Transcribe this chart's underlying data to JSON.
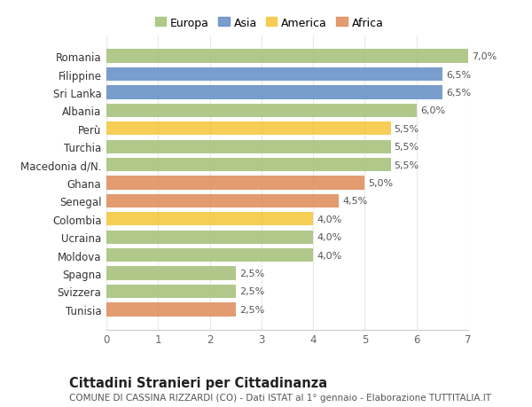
{
  "categories": [
    "Romania",
    "Filippine",
    "Sri Lanka",
    "Albania",
    "Perù",
    "Turchia",
    "Macedonia d/N.",
    "Ghana",
    "Senegal",
    "Colombia",
    "Ucraina",
    "Moldova",
    "Spagna",
    "Svizzera",
    "Tunisia"
  ],
  "values": [
    7.0,
    6.5,
    6.5,
    6.0,
    5.5,
    5.5,
    5.5,
    5.0,
    4.5,
    4.0,
    4.0,
    4.0,
    2.5,
    2.5,
    2.5
  ],
  "labels": [
    "7,0%",
    "6,5%",
    "6,5%",
    "6,0%",
    "5,5%",
    "5,5%",
    "5,5%",
    "5,0%",
    "4,5%",
    "4,0%",
    "4,0%",
    "4,0%",
    "2,5%",
    "2,5%",
    "2,5%"
  ],
  "continent": [
    "Europa",
    "Asia",
    "Asia",
    "Europa",
    "America",
    "Europa",
    "Europa",
    "Africa",
    "Africa",
    "America",
    "Europa",
    "Europa",
    "Europa",
    "Europa",
    "Africa"
  ],
  "colors": {
    "Europa": "#a8c47e",
    "Asia": "#6b93c7",
    "America": "#f5c842",
    "Africa": "#e09060"
  },
  "legend_order": [
    "Europa",
    "Asia",
    "America",
    "Africa"
  ],
  "xlim": [
    0,
    7
  ],
  "xticks": [
    0,
    1,
    2,
    3,
    4,
    5,
    6,
    7
  ],
  "title1": "Cittadini Stranieri per Cittadinanza",
  "title2": "COMUNE DI CASSINA RIZZARDI (CO) - Dati ISTAT al 1° gennaio - Elaborazione TUTTITALIA.IT",
  "background_color": "#ffffff",
  "bar_height": 0.75,
  "label_fontsize": 8.0,
  "ytick_fontsize": 8.5,
  "xtick_fontsize": 8.5,
  "title1_fontsize": 10.5,
  "title2_fontsize": 7.5,
  "grid_color": "#e8e8e8"
}
